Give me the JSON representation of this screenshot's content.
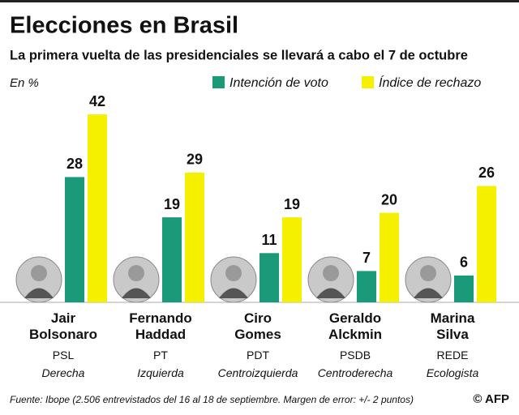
{
  "chart_data": {
    "type": "bar",
    "title": "Elecciones en Brasil",
    "subtitle": "La primera vuelta de las presidenciales se llevará a cabo el 7 de octubre",
    "unit_label": "En %",
    "categories": [
      "Jair Bolsonaro",
      "Fernando Haddad",
      "Ciro Gomes",
      "Geraldo Alckmin",
      "Marina Silva"
    ],
    "parties": [
      "PSL",
      "PT",
      "PDT",
      "PSDB",
      "REDE"
    ],
    "ideologies": [
      "Derecha",
      "Izquierda",
      "Centroizquierda",
      "Centroderecha",
      "Ecologista"
    ],
    "series": [
      {
        "name": "Intención de voto",
        "color": "#1a9a78",
        "values": [
          28,
          19,
          11,
          7,
          6
        ]
      },
      {
        "name": "Índice de rechazo",
        "color": "#f5f000",
        "values": [
          42,
          29,
          19,
          20,
          26
        ]
      }
    ],
    "source": "Fuente: Ibope (2.506 entrevistados del 16 al 18 de septiembre. Margen de error: +/- 2 puntos)",
    "credit": "© AFP"
  }
}
